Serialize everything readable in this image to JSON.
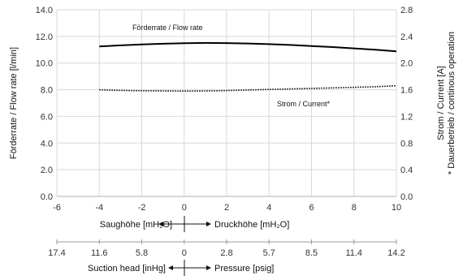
{
  "chart_data": {
    "type": "line",
    "x": [
      -4,
      -3,
      -2,
      -1,
      0,
      1,
      2,
      3,
      4,
      5,
      6,
      7,
      8,
      9,
      10
    ],
    "xlim": [
      -6,
      10
    ],
    "x_ticks": [
      "-6",
      "-4",
      "-2",
      "0",
      "2",
      "4",
      "6",
      "8",
      "10"
    ],
    "ylim": [
      0,
      14
    ],
    "y_ticks": [
      "0.0",
      "2.0",
      "4.0",
      "6.0",
      "8.0",
      "10.0",
      "12.0",
      "14.0"
    ],
    "y2lim": [
      0,
      2.8
    ],
    "y2_ticks": [
      "0.0",
      "0.4",
      "0.8",
      "1.2",
      "1.6",
      "2.0",
      "2.4",
      "2.8"
    ],
    "ylabel": "Förderrate / Flow rate [l/min]",
    "y2label": "Strom / Current [A]",
    "y2label_note": "* Dauerbetrieb / continous operation",
    "grid": true,
    "series": [
      {
        "name": "Förderrate / Flow rate",
        "axis": "left",
        "style": "solid",
        "values": [
          11.25,
          11.33,
          11.4,
          11.45,
          11.49,
          11.51,
          11.5,
          11.47,
          11.42,
          11.36,
          11.28,
          11.2,
          11.1,
          11.0,
          10.88
        ]
      },
      {
        "name": "Strom / Current*",
        "axis": "right",
        "style": "dotted",
        "values": [
          1.6,
          1.59,
          1.585,
          1.582,
          1.58,
          1.582,
          1.588,
          1.596,
          1.604,
          1.612,
          1.62,
          1.628,
          1.636,
          1.645,
          1.66
        ]
      }
    ],
    "extra_axes": [
      {
        "ticks": [],
        "left_label": "Saughöhe [mH₂O]",
        "right_label": "Druckhöhe [mH₂O]"
      },
      {
        "ticks": [
          "17.4",
          "11.6",
          "5.8",
          "0",
          "2.8",
          "5.7",
          "8.5",
          "11.4",
          "14.2"
        ],
        "left_label": "Suction head [inHg]",
        "right_label": "Pressure [psig]"
      }
    ]
  }
}
